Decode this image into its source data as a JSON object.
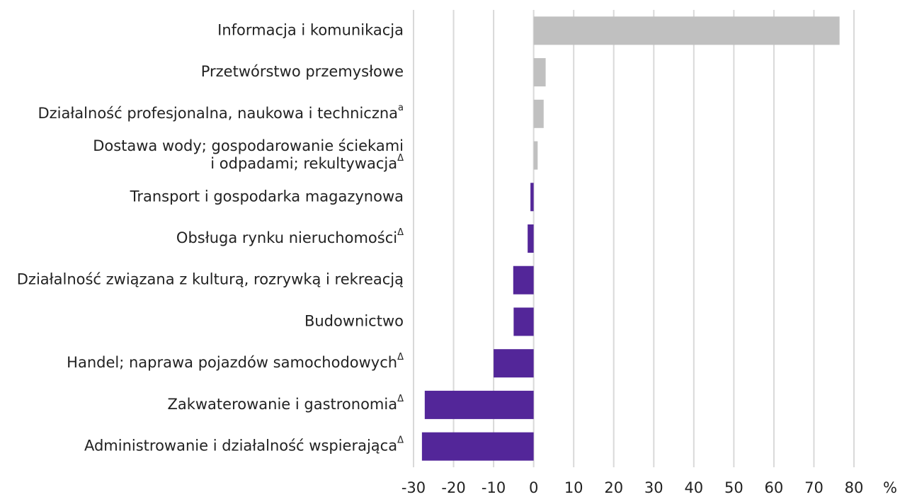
{
  "chart_data": {
    "type": "hbar",
    "categories": [
      "Informacja i komunikacja",
      "Przetwórstwo przemysłowe",
      "Działalność profesjonalna, naukowa i techniczna",
      [
        "Dostawa wody; gospodarowanie ściekami",
        "i odpadami; rekultywacja"
      ],
      "Transport i gospodarka magazynowa",
      "Obsługa rynku nieruchomości",
      "Działalność związana z kulturą, rozrywką i rekreacją",
      "Budownictwo",
      "Handel; naprawa pojazdów samochodowych",
      "Zakwaterowanie i gastronomia",
      "Administrowanie i działalność wspierająca"
    ],
    "category_notes": [
      null,
      null,
      "a",
      "Δ",
      null,
      "Δ",
      null,
      null,
      "Δ",
      "Δ",
      "Δ"
    ],
    "values": [
      76.4,
      3.0,
      2.5,
      1.0,
      -0.8,
      -1.5,
      -5.1,
      -5.0,
      -10.0,
      -27.2,
      -27.9
    ],
    "colors": [
      "#c0c0c0",
      "#c0c0c0",
      "#c0c0c0",
      "#c0c0c0",
      "#532699",
      "#532699",
      "#532699",
      "#532699",
      "#532699",
      "#532699",
      "#532699"
    ],
    "xlim": [
      -30,
      80
    ],
    "xticks": [
      -30,
      -20,
      -10,
      0,
      10,
      20,
      30,
      40,
      50,
      60,
      70,
      80
    ],
    "x_unit": "%",
    "grid": true
  }
}
